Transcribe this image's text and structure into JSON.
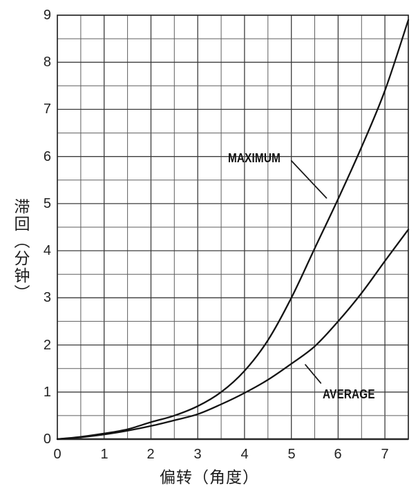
{
  "chart_data": {
    "type": "line",
    "title": "",
    "xlabel": "偏转（角度）",
    "ylabel": "滞回（分钟）",
    "xlim": [
      0,
      7.5
    ],
    "ylim": [
      0,
      9
    ],
    "grid": true,
    "grid_step": 0.5,
    "x_ticks": [
      0,
      1,
      2,
      3,
      4,
      5,
      6,
      7
    ],
    "y_ticks": [
      0,
      1,
      2,
      3,
      4,
      5,
      6,
      7,
      8,
      9
    ],
    "x": [
      0,
      0.5,
      1,
      1.5,
      2,
      2.5,
      3,
      3.5,
      4,
      4.5,
      5,
      5.5,
      6,
      6.5,
      7,
      7.5
    ],
    "series": [
      {
        "name": "MAXIMUM",
        "values": [
          0,
          0.05,
          0.12,
          0.21,
          0.36,
          0.5,
          0.7,
          1.0,
          1.45,
          2.1,
          3.0,
          4.05,
          5.1,
          6.2,
          7.4,
          8.9
        ],
        "annotation": {
          "text": "MAXIMUM",
          "label_pos": [
            3.64,
            5.97
          ],
          "leader": [
            [
              5.0,
              5.91
            ],
            [
              5.75,
              5.12
            ]
          ]
        }
      },
      {
        "name": "AVERAGE",
        "values": [
          0,
          0.04,
          0.1,
          0.18,
          0.28,
          0.4,
          0.53,
          0.74,
          0.98,
          1.26,
          1.6,
          1.97,
          2.5,
          3.1,
          3.78,
          4.45
        ],
        "annotation": {
          "text": "AVERAGE",
          "label_pos": [
            5.67,
            0.95
          ],
          "leader": [
            [
              5.3,
              1.58
            ],
            [
              5.63,
              1.19
            ]
          ]
        }
      }
    ],
    "legend_position": "inline-annotations",
    "colors": {
      "curve": "#141414",
      "grid_major": "#3b3b3b",
      "grid_minor": "#5e5e5e",
      "frame": "#262626",
      "leader": "#1a1a1a",
      "background": "#ffffff",
      "text": "#1c1c1c"
    }
  }
}
